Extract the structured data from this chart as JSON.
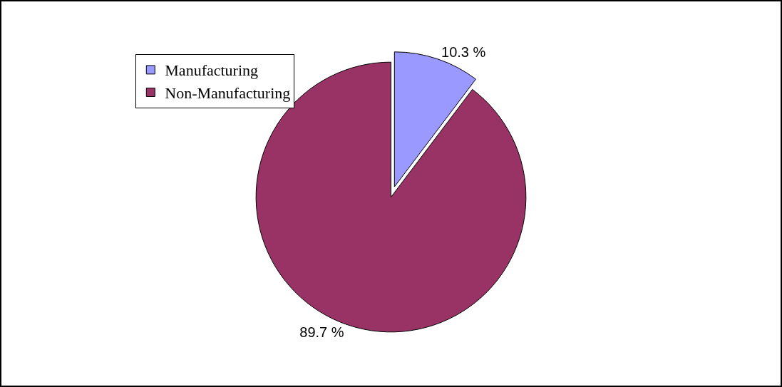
{
  "chart_data": {
    "type": "pie",
    "categories": [
      "Manufacturing",
      "Non-Manufacturing"
    ],
    "values": [
      10.3,
      89.7
    ],
    "colors": [
      "#9999ff",
      "#993366"
    ],
    "value_labels": [
      "10.3 %",
      "89.7 %"
    ],
    "legend": "top left"
  }
}
